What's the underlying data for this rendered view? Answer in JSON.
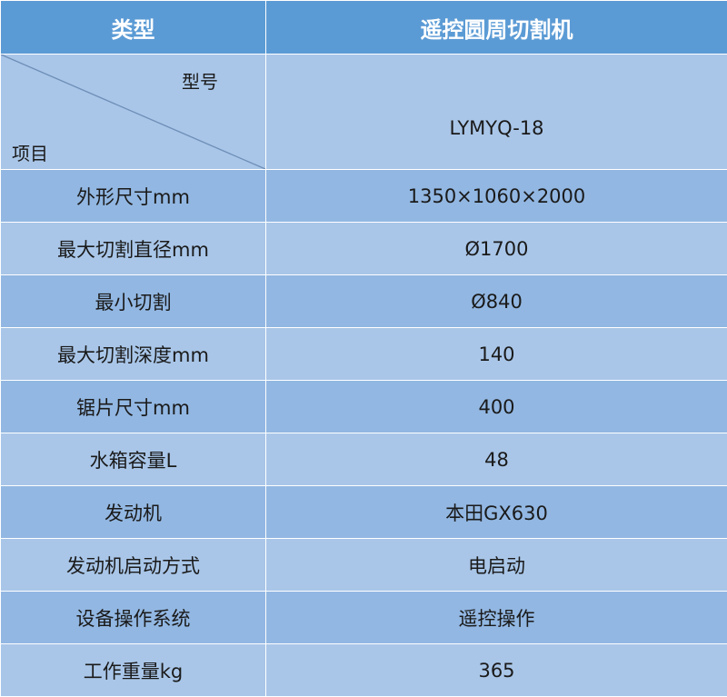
{
  "header": {
    "col_type": "类型",
    "col_product": "遥控圆周切割机"
  },
  "model_row": {
    "corner_top": "型号",
    "corner_bottom": "项目",
    "model": "LYMYQ-18"
  },
  "rows": [
    {
      "label": "外形尺寸mm",
      "value": "1350×1060×2000"
    },
    {
      "label": "最大切割直径mm",
      "value": "Ø1700"
    },
    {
      "label": "最小切割",
      "value": "Ø840"
    },
    {
      "label": "最大切割深度mm",
      "value": "140"
    },
    {
      "label": "锯片尺寸mm",
      "value": "400"
    },
    {
      "label": "水箱容量L",
      "value": "48"
    },
    {
      "label": "发动机",
      "value": "本田GX630"
    },
    {
      "label": "发动机启动方式",
      "value": "电启动"
    },
    {
      "label": "设备操作系统",
      "value": "遥控操作"
    },
    {
      "label": "工作重量kg",
      "value": "365"
    }
  ],
  "colors": {
    "header_bg": "#5b9bd5",
    "row_dark": "#92b7e2",
    "row_light": "#a9c6e8"
  }
}
